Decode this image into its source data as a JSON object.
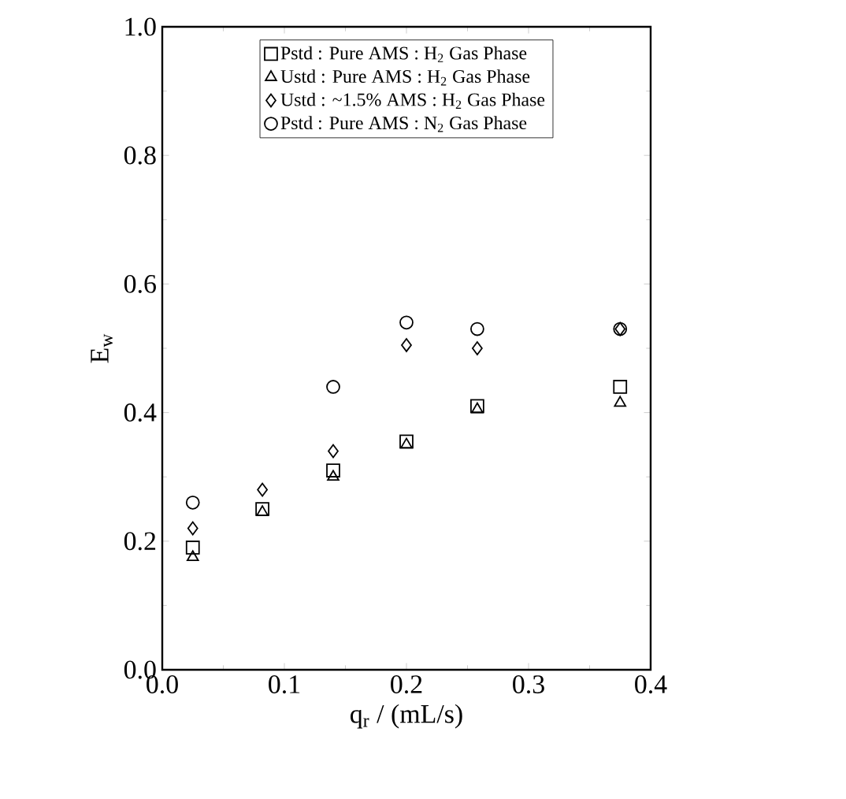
{
  "chart_data": {
    "type": "scatter",
    "xlabel": "q$_{r}$ / (mL/s)",
    "ylabel": "E$_{w}$",
    "x": [
      0.025,
      0.082,
      0.14,
      0.2,
      0.258,
      0.375
    ],
    "series": [
      {
        "name": "Pstd : Pure AMS : H$_{2}$ Gas Phase",
        "color": "#000000",
        "marker": "square",
        "values": [
          0.19,
          0.25,
          0.31,
          0.355,
          0.41,
          0.44
        ]
      },
      {
        "name": "Ustd : Pure AMS : H$_{2}$ Gas Phase",
        "color": "#000000",
        "marker": "triangle",
        "values": [
          0.175,
          0.245,
          0.3,
          0.35,
          0.405,
          0.415
        ]
      },
      {
        "name": "Ustd : ~1.5% AMS : H$_{2}$ Gas Phase",
        "color": "#000000",
        "marker": "diamond",
        "values": [
          0.22,
          0.28,
          0.34,
          0.505,
          0.5,
          0.53
        ]
      },
      {
        "name": "Pstd : Pure AMS : N$_{2}$ Gas Phase",
        "color": "#000000",
        "marker": "circle",
        "values": [
          0.26,
          null,
          0.44,
          0.54,
          0.53,
          0.53
        ]
      }
    ],
    "xlim": [
      0,
      0.4
    ],
    "ylim": [
      0,
      1
    ],
    "xticks": [
      {
        "value": 0,
        "label": "0.0"
      },
      0.1,
      0.2,
      0.3,
      0.4
    ],
    "yticks": [
      {
        "value": 0,
        "label": "0.0"
      },
      0.2,
      0.4,
      0.6,
      0.8,
      {
        "value": 1,
        "label": "1.0"
      }
    ],
    "legend": "top",
    "grid": false
  }
}
